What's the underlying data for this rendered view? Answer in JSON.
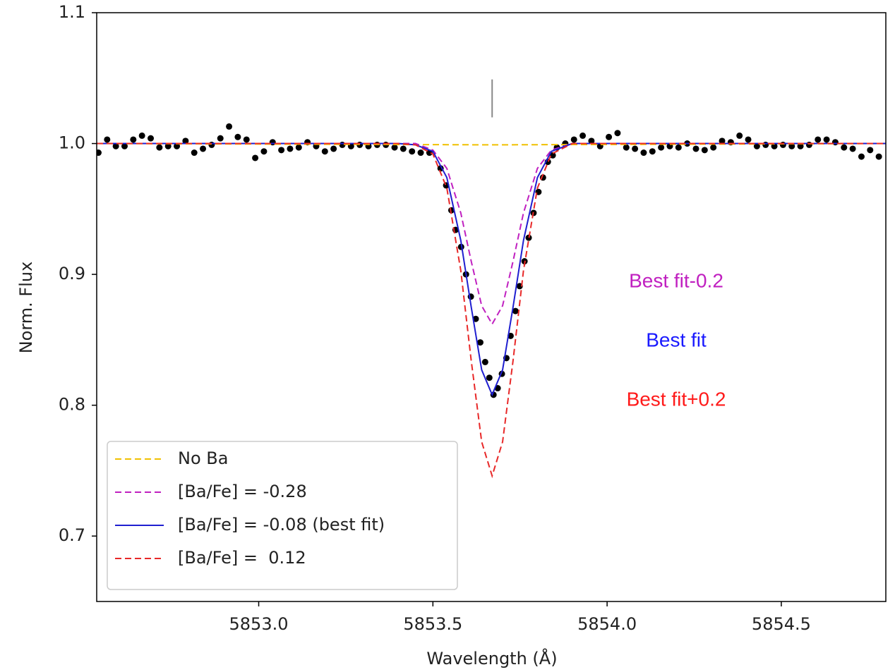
{
  "chart_data": {
    "type": "line",
    "xlabel": "Wavelength (Å)",
    "ylabel": "Norm. Flux",
    "xlim": [
      5852.535,
      5854.8
    ],
    "ylim": [
      0.65,
      1.1
    ],
    "xticks": [
      {
        "value": 5853,
        "label": "5853.0"
      },
      5853.5,
      {
        "value": 5854,
        "label": "5854.0"
      },
      5854.5
    ],
    "yticks": [
      0.7,
      0.8,
      0.9,
      {
        "value": 1,
        "label": "1.0"
      },
      1.1
    ],
    "legend": "lower left",
    "series": [
      {
        "name": "No Ba",
        "color": "#f0c000",
        "style": "dashed",
        "x": [
          5852.535,
          5853.67,
          5854.8
        ],
        "values": [
          1,
          0.999,
          1
        ]
      },
      {
        "name": "[Ba/Fe] = -0.28",
        "color": "#c020c0",
        "style": "dashed",
        "x": [
          5852.535,
          5853.0,
          5853.4,
          5853.45,
          5853.5,
          5853.54,
          5853.58,
          5853.61,
          5853.64,
          5853.67,
          5853.7,
          5853.73,
          5853.76,
          5853.8,
          5853.84,
          5853.9,
          5854.0,
          5854.8
        ],
        "values": [
          1,
          1,
          1,
          1,
          0.995,
          0.981,
          0.947,
          0.91,
          0.876,
          0.862,
          0.876,
          0.91,
          0.947,
          0.981,
          0.995,
          1,
          1,
          1
        ]
      },
      {
        "name": "[Ba/Fe] = -0.08 (best fit)",
        "color": "#1f1fd0",
        "style": "solid",
        "x": [
          5852.535,
          5853.0,
          5853.4,
          5853.45,
          5853.5,
          5853.54,
          5853.58,
          5853.61,
          5853.64,
          5853.67,
          5853.7,
          5853.73,
          5853.76,
          5853.8,
          5853.84,
          5853.9,
          5854.0,
          5854.8
        ],
        "values": [
          1,
          1,
          1,
          0.999,
          0.994,
          0.974,
          0.926,
          0.875,
          0.827,
          0.808,
          0.827,
          0.875,
          0.926,
          0.974,
          0.994,
          1,
          1,
          1
        ]
      },
      {
        "name": "[Ba/Fe] =  0.12",
        "color": "#e82828",
        "style": "dashed",
        "x": [
          5852.535,
          5853.0,
          5853.4,
          5853.45,
          5853.5,
          5853.54,
          5853.58,
          5853.61,
          5853.64,
          5853.67,
          5853.7,
          5853.73,
          5853.76,
          5853.8,
          5853.84,
          5853.9,
          5854.0,
          5854.8
        ],
        "values": [
          1,
          1,
          1,
          0.999,
          0.992,
          0.966,
          0.903,
          0.834,
          0.772,
          0.746,
          0.772,
          0.834,
          0.903,
          0.966,
          0.992,
          1,
          1,
          1
        ]
      }
    ],
    "observed": {
      "color": "#000000",
      "x": [
        5852.54,
        5852.565,
        5852.59,
        5852.615,
        5852.64,
        5852.665,
        5852.69,
        5852.715,
        5852.74,
        5852.765,
        5852.79,
        5852.815,
        5852.84,
        5852.865,
        5852.89,
        5852.915,
        5852.94,
        5852.965,
        5852.99,
        5853.015,
        5853.04,
        5853.065,
        5853.09,
        5853.115,
        5853.14,
        5853.165,
        5853.19,
        5853.215,
        5853.24,
        5853.265,
        5853.29,
        5853.315,
        5853.34,
        5853.365,
        5853.39,
        5853.415,
        5853.44,
        5853.465,
        5853.49,
        5853.522,
        5853.538,
        5853.553,
        5853.565,
        5853.581,
        5853.595,
        5853.609,
        5853.623,
        5853.636,
        5853.65,
        5853.662,
        5853.674,
        5853.686,
        5853.698,
        5853.711,
        5853.723,
        5853.737,
        5853.749,
        5853.763,
        5853.775,
        5853.789,
        5853.803,
        5853.816,
        5853.83,
        5853.844,
        5853.856,
        5853.88,
        5853.905,
        5853.93,
        5853.955,
        5853.98,
        5854.005,
        5854.03,
        5854.055,
        5854.08,
        5854.105,
        5854.13,
        5854.155,
        5854.18,
        5854.205,
        5854.23,
        5854.255,
        5854.28,
        5854.305,
        5854.33,
        5854.355,
        5854.38,
        5854.405,
        5854.43,
        5854.455,
        5854.48,
        5854.505,
        5854.53,
        5854.555,
        5854.58,
        5854.605,
        5854.63,
        5854.655,
        5854.68,
        5854.705,
        5854.73,
        5854.755,
        5854.78
      ],
      "values": [
        0.993,
        1.003,
        0.998,
        0.998,
        1.003,
        1.006,
        1.004,
        0.997,
        0.998,
        0.998,
        1.002,
        0.993,
        0.996,
        0.999,
        1.004,
        1.013,
        1.005,
        1.003,
        0.989,
        0.994,
        1.001,
        0.995,
        0.996,
        0.997,
        1.001,
        0.998,
        0.994,
        0.996,
        0.999,
        0.998,
        0.999,
        0.998,
        0.999,
        0.999,
        0.997,
        0.996,
        0.994,
        0.993,
        0.993,
        0.981,
        0.968,
        0.949,
        0.934,
        0.921,
        0.9,
        0.883,
        0.866,
        0.848,
        0.833,
        0.821,
        0.808,
        0.813,
        0.824,
        0.836,
        0.853,
        0.872,
        0.891,
        0.91,
        0.928,
        0.947,
        0.963,
        0.974,
        0.986,
        0.991,
        0.997,
        1.0,
        1.003,
        1.006,
        1.002,
        0.998,
        1.005,
        1.008,
        0.997,
        0.996,
        0.993,
        0.994,
        0.997,
        0.998,
        0.997,
        1.0,
        0.996,
        0.995,
        0.997,
        1.002,
        1.001,
        1.006,
        1.003,
        0.998,
        0.999,
        0.998,
        0.999,
        0.998,
        0.998,
        0.999,
        1.003,
        1.003,
        1.001,
        0.997,
        0.996,
        0.99,
        0.995,
        0.99
      ]
    },
    "line_marker": {
      "x": 5853.67,
      "ymin": 1.02,
      "ymax": 1.049,
      "color": "#888888"
    },
    "annotations": [
      {
        "text": "Best fit-0.2",
        "color": "#c020c0"
      },
      {
        "text": "Best fit",
        "color": "#1a1aff"
      },
      {
        "text": "Best fit+0.2",
        "color": "#ff1a1a"
      }
    ]
  }
}
